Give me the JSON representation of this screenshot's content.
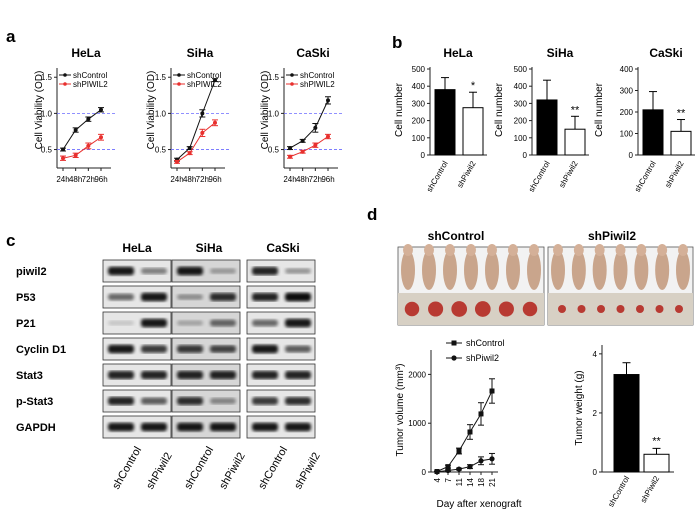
{
  "panels": {
    "a": "a",
    "b": "b",
    "c": "c",
    "d": "d"
  },
  "panel_a": {
    "ylabel": "Cell Viability (OD)",
    "legend": [
      "shControl",
      "shPIWIL2"
    ],
    "x_ticks": [
      "24h",
      "48h",
      "72h",
      "96h"
    ],
    "y_ticks": [
      "0.5",
      "1.0",
      "1.5"
    ],
    "reference_lines": [
      0.5,
      1.0
    ]
  },
  "panel_b": {
    "ylabel": "Cell number",
    "x_labels": [
      "shControl",
      "shPiwil2"
    ]
  },
  "panel_c": {
    "cells": [
      "HeLa",
      "SiHa",
      "CaSki"
    ],
    "rows": [
      "piwil2",
      "P53",
      "P21",
      "Cyclin D1",
      "Stat3",
      "p-Stat3",
      "GAPDH"
    ],
    "x_labels": [
      "shControl",
      "shPiwil2"
    ]
  },
  "panel_d": {
    "photo_labels": [
      "shControl",
      "shPiwil2"
    ],
    "legend": [
      "shControl",
      "shPiwil2"
    ]
  },
  "chart_data": [
    {
      "type": "line",
      "title": "HeLa",
      "ylabel": "Cell Viability (OD)",
      "categories": [
        "24h",
        "48h",
        "72h",
        "96h"
      ],
      "ylim": [
        0.3,
        1.6
      ],
      "series": [
        {
          "name": "shControl",
          "values": [
            0.5,
            0.77,
            0.92,
            1.05
          ],
          "errors": [
            0.02,
            0.03,
            0.03,
            0.03
          ],
          "color": "#111111"
        },
        {
          "name": "shPIWIL2",
          "values": [
            0.38,
            0.42,
            0.55,
            0.67
          ],
          "errors": [
            0.03,
            0.03,
            0.04,
            0.04
          ],
          "color": "#e8302e"
        }
      ]
    },
    {
      "type": "line",
      "title": "SiHa",
      "ylabel": "Cell Viability (OD)",
      "categories": [
        "24h",
        "48h",
        "72h",
        "96h"
      ],
      "ylim": [
        0.3,
        1.6
      ],
      "series": [
        {
          "name": "shControl",
          "values": [
            0.36,
            0.52,
            1.0,
            1.46
          ],
          "errors": [
            0.02,
            0.02,
            0.05,
            0.02
          ],
          "color": "#111111"
        },
        {
          "name": "shPIWIL2",
          "values": [
            0.33,
            0.45,
            0.73,
            0.87
          ],
          "errors": [
            0.02,
            0.02,
            0.05,
            0.04
          ],
          "color": "#e8302e"
        }
      ]
    },
    {
      "type": "line",
      "title": "CaSki",
      "ylabel": "Cell Viability (OD)",
      "categories": [
        "24h",
        "48h",
        "72h",
        "96h"
      ],
      "ylim": [
        0.3,
        1.6
      ],
      "series": [
        {
          "name": "shControl",
          "values": [
            0.52,
            0.62,
            0.8,
            1.18
          ],
          "errors": [
            0.02,
            0.02,
            0.06,
            0.05
          ],
          "color": "#111111"
        },
        {
          "name": "shPIWIL2",
          "values": [
            0.4,
            0.47,
            0.56,
            0.68
          ],
          "errors": [
            0.02,
            0.02,
            0.03,
            0.03
          ],
          "color": "#e8302e"
        }
      ]
    },
    {
      "type": "bar",
      "title": "HeLa",
      "ylabel": "Cell number",
      "categories": [
        "shControl",
        "shPiwil2"
      ],
      "values": [
        380,
        275
      ],
      "errors": [
        70,
        90
      ],
      "ylim": [
        0,
        500
      ],
      "yticks": [
        0,
        100,
        200,
        300,
        400,
        500
      ],
      "annotation": "*"
    },
    {
      "type": "bar",
      "title": "SiHa",
      "ylabel": "Cell number",
      "categories": [
        "shControl",
        "shPiwil2"
      ],
      "values": [
        320,
        150
      ],
      "errors": [
        115,
        75
      ],
      "ylim": [
        0,
        500
      ],
      "yticks": [
        0,
        100,
        200,
        300,
        400,
        500
      ],
      "annotation": "**"
    },
    {
      "type": "bar",
      "title": "CaSki",
      "ylabel": "Cell number",
      "categories": [
        "shControl",
        "shPiwil2"
      ],
      "values": [
        210,
        110
      ],
      "errors": [
        85,
        55
      ],
      "ylim": [
        0,
        400
      ],
      "yticks": [
        0,
        100,
        200,
        300,
        400
      ],
      "annotation": "**"
    },
    {
      "type": "line",
      "title": "",
      "xlabel": "Day after xenograft",
      "ylabel": "Tumor volume (mm³)",
      "categories": [
        "4",
        "7",
        "11",
        "14",
        "18",
        "21"
      ],
      "ylim": [
        0,
        2500
      ],
      "yticks": [
        0,
        1000,
        2000
      ],
      "series": [
        {
          "name": "shControl",
          "marker": "square",
          "values": [
            10,
            110,
            430,
            820,
            1190,
            1660
          ],
          "errors": [
            10,
            30,
            60,
            150,
            230,
            250
          ]
        },
        {
          "name": "shPiwil2",
          "marker": "circle",
          "values": [
            5,
            30,
            60,
            110,
            230,
            270
          ],
          "errors": [
            5,
            15,
            20,
            40,
            80,
            110
          ]
        }
      ]
    },
    {
      "type": "bar",
      "title": "",
      "ylabel": "Tumor weight (g)",
      "categories": [
        "shControl",
        "shPiwil2"
      ],
      "values": [
        3.3,
        0.6
      ],
      "errors": [
        0.4,
        0.2
      ],
      "ylim": [
        0,
        4.3
      ],
      "yticks": [
        0,
        2,
        4
      ],
      "annotation": "**"
    }
  ]
}
